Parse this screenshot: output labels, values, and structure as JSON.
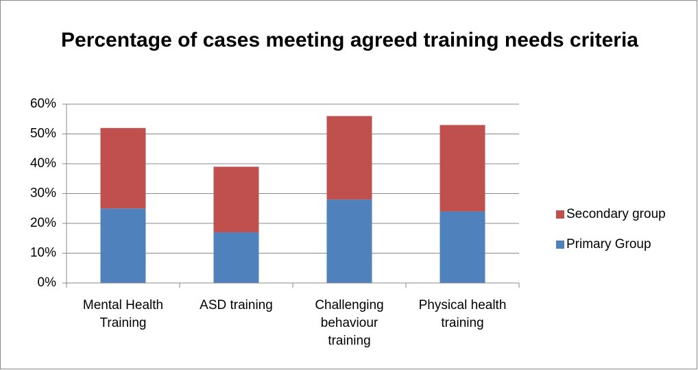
{
  "chart_data": {
    "type": "stacked_bar",
    "title": "Percentage of cases meeting agreed training needs criteria",
    "categories": [
      "Mental Health Training",
      "ASD training",
      "Challenging behaviour training",
      "Physical health training"
    ],
    "series": [
      {
        "name": "Primary Group",
        "color": "#4f81bd",
        "values": [
          25,
          17,
          28,
          24
        ]
      },
      {
        "name": "Secondary group",
        "color": "#c0504d",
        "values": [
          27,
          22,
          28,
          29
        ]
      }
    ],
    "ylim": [
      0,
      60
    ],
    "yticks": [
      {
        "value": 0,
        "label": "0%"
      },
      {
        "value": 10,
        "label": "10%"
      },
      {
        "value": 20,
        "label": "20%"
      },
      {
        "value": 30,
        "label": "30%"
      },
      {
        "value": 40,
        "label": "40%"
      },
      {
        "value": 50,
        "label": "50%"
      },
      {
        "value": 60,
        "label": "60%"
      }
    ],
    "grid": true,
    "legend": "right"
  }
}
